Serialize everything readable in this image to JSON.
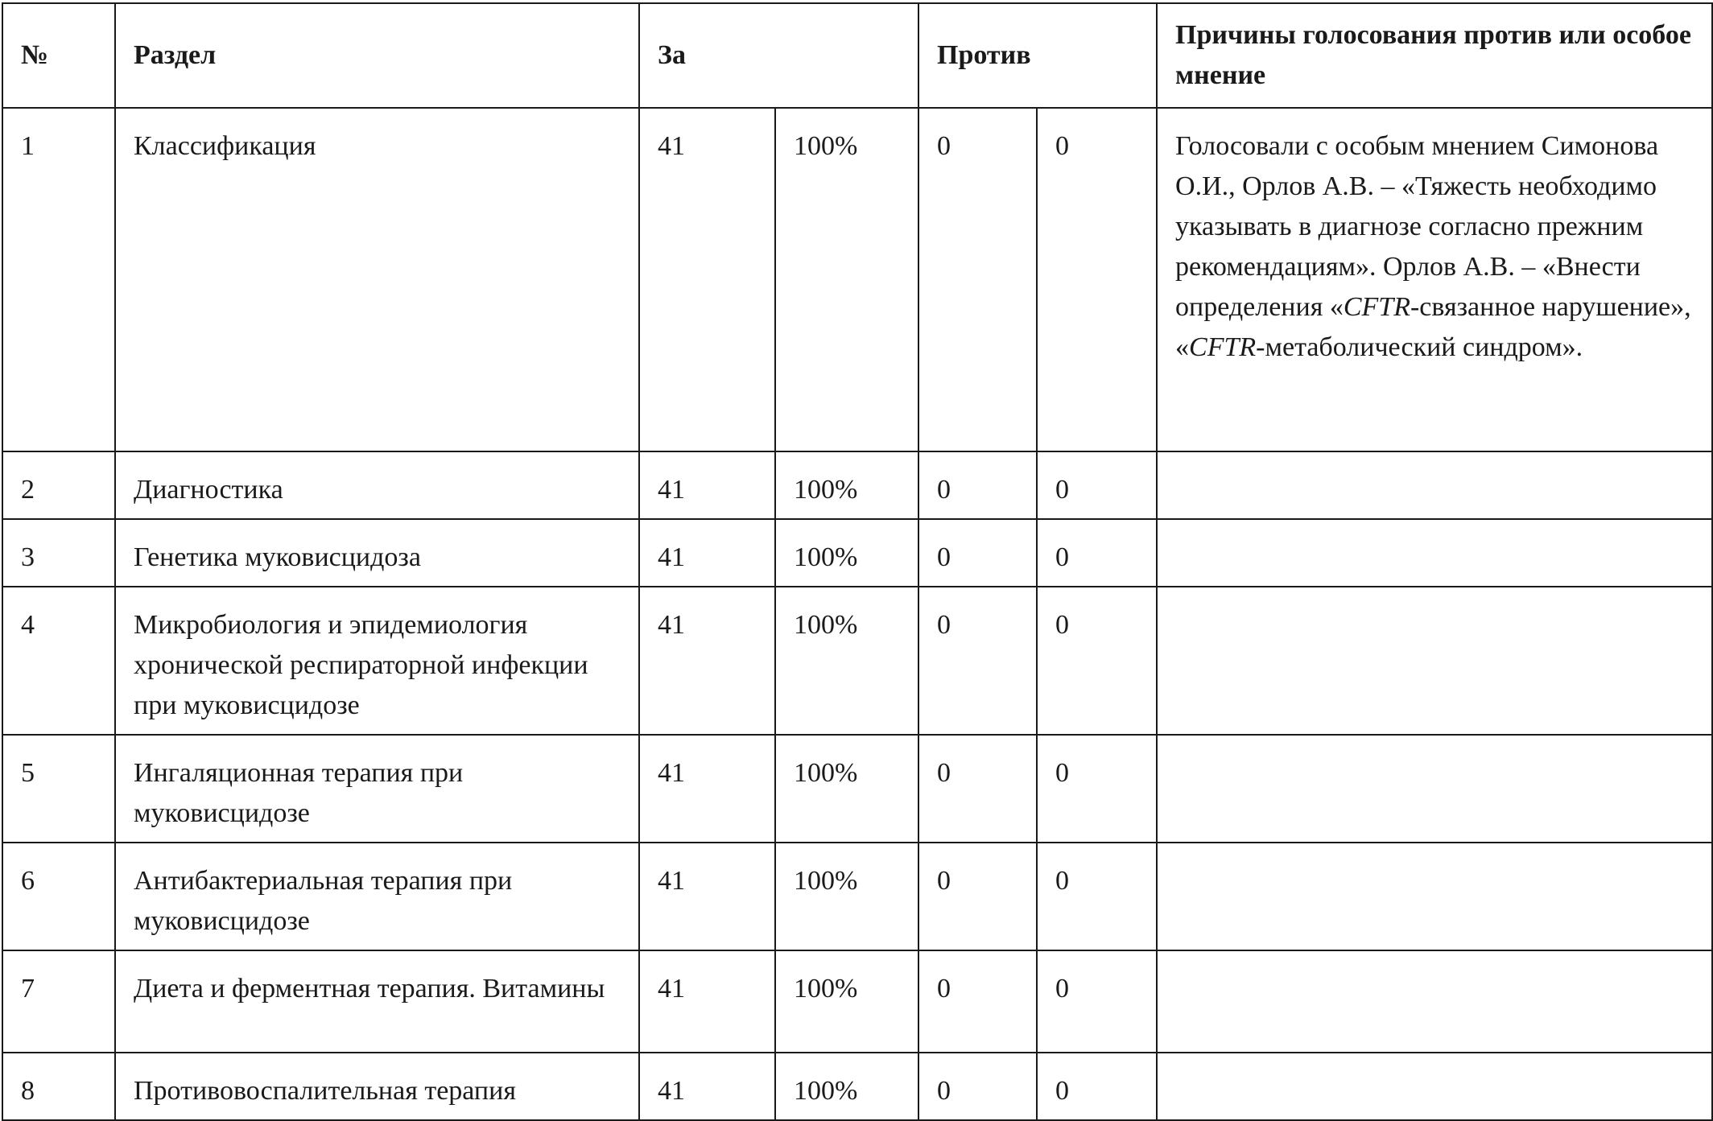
{
  "headers": {
    "num": "№",
    "section": "Раздел",
    "for": "За",
    "against": "Против",
    "reasons": "Причины голосования против или особое мнение"
  },
  "rows": [
    {
      "num": "1",
      "section": "Классификация",
      "for_count": "41",
      "for_pct": "100%",
      "against_count": "0",
      "against_pct": "0",
      "reason_parts": [
        "Голосовали с особым мнением Симонова О.И., Орлов А.В.  – «Тяжесть необходимо указывать в диагнозе согласно прежним рекомендациям». Орлов А.В. – «Внести определения «",
        "CFTR",
        "-связанное нарушение», «",
        "CFTR",
        "-метаболический синдром»."
      ]
    },
    {
      "num": "2",
      "section": "Диагностика",
      "for_count": "41",
      "for_pct": "100%",
      "against_count": "0",
      "against_pct": "0"
    },
    {
      "num": "3",
      "section": "Генетика муковисцидоза",
      "for_count": "41",
      "for_pct": "100%",
      "against_count": "0",
      "against_pct": "0"
    },
    {
      "num": "4",
      "section": "Микробиология и эпидемиология хронической респираторной инфекции при муковисцидозе",
      "for_count": "41",
      "for_pct": "100%",
      "against_count": "0",
      "against_pct": "0"
    },
    {
      "num": "5",
      "section": "Ингаляционная терапия при муковисцидозе",
      "for_count": "41",
      "for_pct": "100%",
      "against_count": "0",
      "against_pct": "0"
    },
    {
      "num": "6",
      "section": "Антибактериальная терапия при муковисцидозе",
      "for_count": "41",
      "for_pct": "100%",
      "against_count": "0",
      "against_pct": "0"
    },
    {
      "num": "7",
      "section": "Диета и ферментная терапия. Витамины",
      "for_count": "41",
      "for_pct": "100%",
      "against_count": "0",
      "against_pct": "0"
    },
    {
      "num": "8",
      "section": "Противовоспалительная терапия",
      "for_count": "41",
      "for_pct": "100%",
      "against_count": "0",
      "against_pct": "0"
    }
  ]
}
